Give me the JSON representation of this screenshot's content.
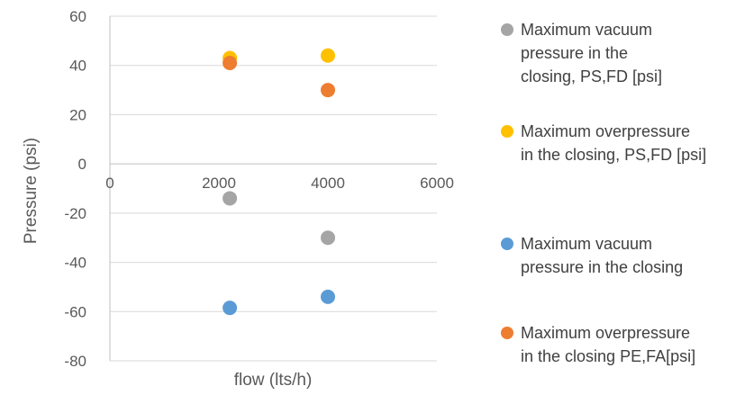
{
  "chart_data": {
    "type": "scatter",
    "title": "",
    "xlabel": "flow (lts/h)",
    "ylabel": "Pressure (psi)",
    "xlim": [
      0,
      6000
    ],
    "ylim": [
      -80,
      60
    ],
    "x_ticks": [
      "0",
      "2000",
      "4000",
      "6000"
    ],
    "y_ticks": [
      "60",
      "40",
      "20",
      "0",
      "-20",
      "-40",
      "-60",
      "-80"
    ],
    "grid": "horizontal",
    "legend_position": "right",
    "series": [
      {
        "name": "Maximum vacuum pressure in the closing, PS,FD [psi]",
        "legend_lines": [
          "Maximum vacuum",
          "pressure in the",
          "closing, PS,FD [psi]"
        ],
        "color": "#A5A5A5",
        "points": [
          {
            "x": 2200,
            "y": -14
          },
          {
            "x": 4000,
            "y": -30
          }
        ]
      },
      {
        "name": "Maximum overpressure in the closing, PS,FD [psi]",
        "legend_lines": [
          "Maximum overpressure",
          "in the closing, PS,FD [psi]"
        ],
        "color": "#FFC000",
        "points": [
          {
            "x": 2200,
            "y": 43
          },
          {
            "x": 4000,
            "y": 44
          }
        ]
      },
      {
        "name": "Maximum vacuum pressure in the closing",
        "legend_lines": [
          "Maximum vacuum",
          "pressure in the closing"
        ],
        "color": "#5B9BD5",
        "points": [
          {
            "x": 2200,
            "y": -58.5
          },
          {
            "x": 4000,
            "y": -54
          }
        ]
      },
      {
        "name": "Maximum overpressure in the closing PE,FA[psi]",
        "legend_lines": [
          "Maximum overpressure",
          "in the closing  PE,FA[psi]"
        ],
        "color": "#ED7D31",
        "points": [
          {
            "x": 2200,
            "y": 41
          },
          {
            "x": 4000,
            "y": 30
          }
        ]
      }
    ]
  }
}
